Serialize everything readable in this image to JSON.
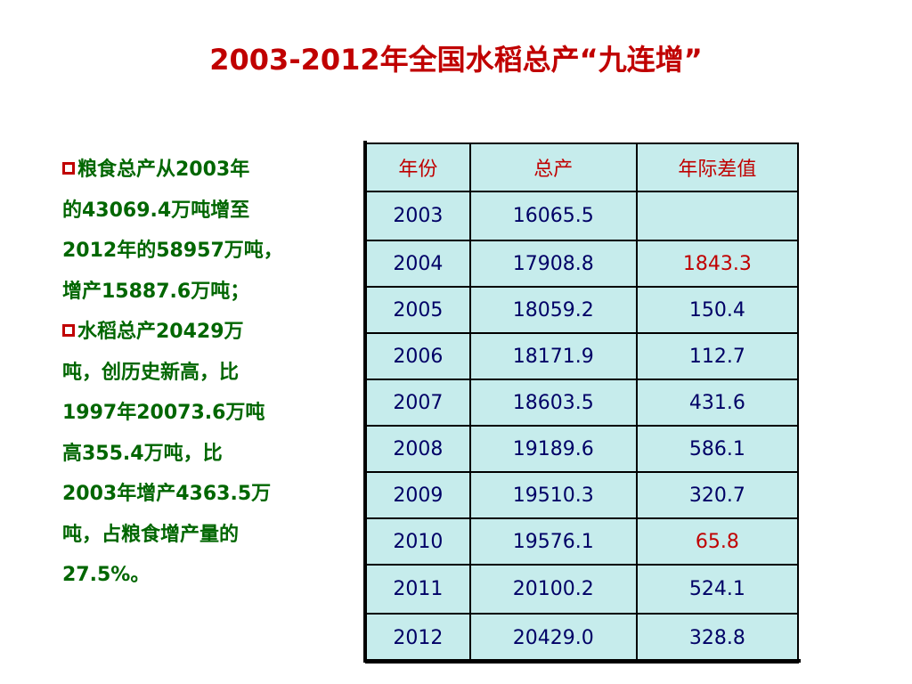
{
  "title": "2003-2012年全国水稻总产“九连增”",
  "bullets": [
    {
      "lines": [
        "粮食总产从2003年",
        "的43069.4万吨增至",
        "2012年的58957万吨，",
        "增产15887.6万吨；"
      ]
    },
    {
      "lines": [
        "水稻总产20429万",
        "吨，创历史新高，比",
        "1997年20073.6万吨",
        "高355.4万吨，比",
        "2003年增产4363.5万",
        "吨，占粮食增产量的",
        "27.5%。"
      ]
    }
  ],
  "table": {
    "headers": [
      "年份",
      "总产",
      "年际差值"
    ],
    "rows": [
      {
        "year": "2003",
        "total": "16065.5",
        "diff": "",
        "highlight": false
      },
      {
        "year": "2004",
        "total": "17908.8",
        "diff": "1843.3",
        "highlight": true
      },
      {
        "year": "2005",
        "total": "18059.2",
        "diff": "150.4",
        "highlight": false
      },
      {
        "year": "2006",
        "total": "18171.9",
        "diff": "112.7",
        "highlight": false
      },
      {
        "year": "2007",
        "total": "18603.5",
        "diff": "431.6",
        "highlight": false
      },
      {
        "year": "2008",
        "total": "19189.6",
        "diff": "586.1",
        "highlight": false
      },
      {
        "year": "2009",
        "total": "19510.3",
        "diff": "320.7",
        "highlight": false
      },
      {
        "year": "2010",
        "total": "19576.1",
        "diff": "65.8",
        "highlight": true
      },
      {
        "year": "2011",
        "total": "20100.2",
        "diff": "524.1",
        "highlight": false
      },
      {
        "year": "2012",
        "total": "20429.0",
        "diff": "328.8",
        "highlight": false
      }
    ]
  },
  "colors": {
    "title": "#c00000",
    "bullet_text": "#006600",
    "table_fill": "#c6ecec",
    "table_text": "#000066",
    "highlight": "#c00000"
  }
}
